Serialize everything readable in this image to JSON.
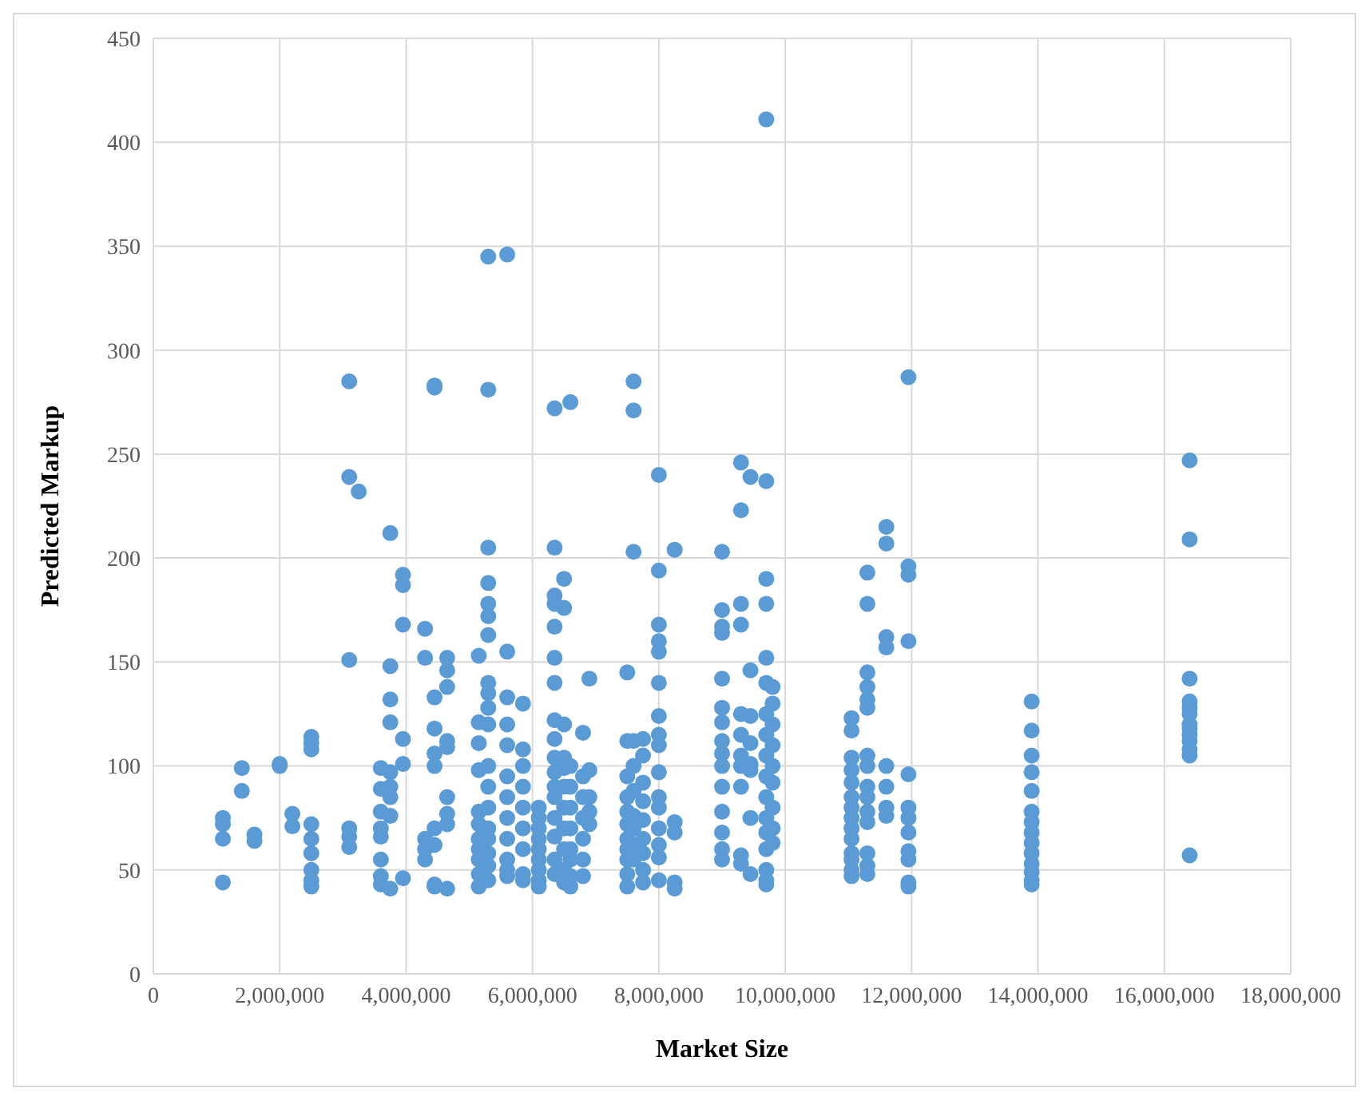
{
  "chart_data": {
    "type": "scatter",
    "xlabel": "Market Size",
    "ylabel": "Predicted Markup",
    "xlim": [
      0,
      18000000
    ],
    "ylim": [
      0,
      450
    ],
    "xticks": [
      {
        "value": 0,
        "label": "0"
      },
      {
        "value": 2000000,
        "label": "2,000,000"
      },
      {
        "value": 4000000,
        "label": "4,000,000"
      },
      {
        "value": 6000000,
        "label": "6,000,000"
      },
      {
        "value": 8000000,
        "label": "8,000,000"
      },
      {
        "value": 10000000,
        "label": "10,000,000"
      },
      {
        "value": 12000000,
        "label": "12,000,000"
      },
      {
        "value": 14000000,
        "label": "14,000,000"
      },
      {
        "value": 16000000,
        "label": "16,000,000"
      },
      {
        "value": 18000000,
        "label": "18,000,000"
      }
    ],
    "yticks": [
      0,
      50,
      100,
      150,
      200,
      250,
      300,
      350,
      400,
      450
    ],
    "grid": true,
    "marker": "circle",
    "series": [
      {
        "color": "#5b9bd5",
        "x": [
          1100000,
          1100000,
          1100000,
          1100000,
          1400000,
          1400000,
          1600000,
          1600000,
          2000000,
          2000000,
          2200000,
          2200000,
          2500000,
          2500000,
          2500000,
          2500000,
          2500000,
          2500000,
          2500000,
          2500000,
          2500000,
          3100000,
          3100000,
          3100000,
          3100000,
          3100000,
          3100000,
          3250000,
          3600000,
          3600000,
          3600000,
          3600000,
          3600000,
          3600000,
          3600000,
          3600000,
          3750000,
          3750000,
          3750000,
          3750000,
          3750000,
          3750000,
          3750000,
          3750000,
          3750000,
          3950000,
          3950000,
          3950000,
          3950000,
          3950000,
          3950000,
          4300000,
          4300000,
          4300000,
          4300000,
          4300000,
          4450000,
          4450000,
          4450000,
          4450000,
          4450000,
          4450000,
          4450000,
          4450000,
          4450000,
          4450000,
          4650000,
          4650000,
          4650000,
          4650000,
          4650000,
          4650000,
          4650000,
          4650000,
          4650000,
          5150000,
          5150000,
          5150000,
          5150000,
          5150000,
          5150000,
          5150000,
          5150000,
          5150000,
          5150000,
          5150000,
          5300000,
          5300000,
          5300000,
          5300000,
          5300000,
          5300000,
          5300000,
          5300000,
          5300000,
          5300000,
          5300000,
          5300000,
          5300000,
          5300000,
          5300000,
          5300000,
          5300000,
          5300000,
          5300000,
          5600000,
          5600000,
          5600000,
          5600000,
          5600000,
          5600000,
          5600000,
          5600000,
          5600000,
          5600000,
          5600000,
          5600000,
          5850000,
          5850000,
          5850000,
          5850000,
          5850000,
          5850000,
          5850000,
          5850000,
          5850000,
          6100000,
          6100000,
          6100000,
          6100000,
          6100000,
          6100000,
          6100000,
          6100000,
          6100000,
          6350000,
          6350000,
          6350000,
          6350000,
          6350000,
          6350000,
          6350000,
          6350000,
          6350000,
          6350000,
          6350000,
          6350000,
          6350000,
          6350000,
          6350000,
          6350000,
          6350000,
          6500000,
          6500000,
          6500000,
          6500000,
          6500000,
          6500000,
          6500000,
          6500000,
          6500000,
          6500000,
          6500000,
          6600000,
          6600000,
          6600000,
          6600000,
          6600000,
          6600000,
          6600000,
          6600000,
          6600000,
          6800000,
          6800000,
          6800000,
          6800000,
          6800000,
          6800000,
          6800000,
          6900000,
          6900000,
          6900000,
          6900000,
          6900000,
          7500000,
          7500000,
          7500000,
          7500000,
          7500000,
          7500000,
          7500000,
          7500000,
          7500000,
          7500000,
          7500000,
          7600000,
          7600000,
          7600000,
          7600000,
          7600000,
          7600000,
          7600000,
          7600000,
          7600000,
          7600000,
          7750000,
          7750000,
          7750000,
          7750000,
          7750000,
          7750000,
          7750000,
          7750000,
          7750000,
          8000000,
          8000000,
          8000000,
          8000000,
          8000000,
          8000000,
          8000000,
          8000000,
          8000000,
          8000000,
          8000000,
          8000000,
          8000000,
          8000000,
          8000000,
          8000000,
          8250000,
          8250000,
          8250000,
          8250000,
          8250000,
          9000000,
          9000000,
          9000000,
          9000000,
          9000000,
          9000000,
          9000000,
          9000000,
          9000000,
          9000000,
          9000000,
          9000000,
          9000000,
          9000000,
          9000000,
          9300000,
          9300000,
          9300000,
          9300000,
          9300000,
          9300000,
          9300000,
          9300000,
          9300000,
          9300000,
          9300000,
          9450000,
          9450000,
          9450000,
          9450000,
          9450000,
          9450000,
          9450000,
          9450000,
          9700000,
          9700000,
          9700000,
          9700000,
          9700000,
          9700000,
          9700000,
          9700000,
          9700000,
          9700000,
          9700000,
          9700000,
          9700000,
          9700000,
          9700000,
          9700000,
          9700000,
          9800000,
          9800000,
          9800000,
          9800000,
          9800000,
          9800000,
          9800000,
          9800000,
          9800000,
          11050000,
          11050000,
          11050000,
          11050000,
          11050000,
          11050000,
          11050000,
          11050000,
          11050000,
          11050000,
          11050000,
          11050000,
          11050000,
          11050000,
          11300000,
          11300000,
          11300000,
          11300000,
          11300000,
          11300000,
          11300000,
          11300000,
          11300000,
          11300000,
          11300000,
          11300000,
          11300000,
          11300000,
          11300000,
          11600000,
          11600000,
          11600000,
          11600000,
          11600000,
          11600000,
          11600000,
          11600000,
          11950000,
          11950000,
          11950000,
          11950000,
          11950000,
          11950000,
          11950000,
          11950000,
          11950000,
          11950000,
          11950000,
          11950000,
          13900000,
          13900000,
          13900000,
          13900000,
          13900000,
          13900000,
          13900000,
          13900000,
          13900000,
          13900000,
          13900000,
          13900000,
          13900000,
          13900000,
          16400000,
          16400000,
          16400000,
          16400000,
          16400000,
          16400000,
          16400000,
          16400000,
          16400000,
          16400000,
          16400000,
          16400000,
          16400000
        ],
        "values": [
          75,
          72,
          65,
          44,
          99,
          88,
          67,
          64,
          101,
          100,
          77,
          71,
          114,
          111,
          108,
          72,
          65,
          58,
          50,
          45,
          42,
          285,
          239,
          151,
          70,
          66,
          61,
          232,
          99,
          89,
          78,
          70,
          66,
          55,
          47,
          43,
          212,
          148,
          132,
          121,
          97,
          90,
          85,
          76,
          41,
          192,
          187,
          168,
          113,
          101,
          46,
          166,
          152,
          65,
          60,
          55,
          283,
          282,
          133,
          118,
          106,
          100,
          70,
          62,
          43,
          42,
          152,
          146,
          138,
          112,
          109,
          85,
          77,
          72,
          41,
          153,
          121,
          111,
          98,
          78,
          72,
          65,
          60,
          55,
          48,
          42,
          345,
          281,
          205,
          188,
          178,
          172,
          163,
          140,
          135,
          128,
          120,
          100,
          90,
          80,
          70,
          65,
          58,
          52,
          45,
          346,
          155,
          133,
          120,
          110,
          95,
          85,
          75,
          65,
          55,
          50,
          47,
          130,
          108,
          100,
          90,
          80,
          70,
          60,
          48,
          45,
          80,
          75,
          70,
          65,
          60,
          55,
          50,
          45,
          42,
          272,
          205,
          182,
          178,
          167,
          152,
          140,
          122,
          113,
          104,
          97,
          90,
          85,
          75,
          66,
          55,
          48,
          190,
          176,
          120,
          104,
          99,
          90,
          80,
          70,
          60,
          50,
          44,
          275,
          100,
          90,
          80,
          70,
          60,
          55,
          47,
          42,
          116,
          95,
          85,
          75,
          65,
          55,
          47,
          142,
          98,
          85,
          78,
          72,
          145,
          112,
          95,
          85,
          78,
          72,
          65,
          60,
          55,
          48,
          42,
          285,
          271,
          203,
          112,
          100,
          88,
          76,
          70,
          62,
          55,
          113,
          105,
          92,
          83,
          74,
          65,
          58,
          50,
          44,
          240,
          194,
          168,
          160,
          155,
          140,
          124,
          115,
          110,
          97,
          85,
          80,
          70,
          62,
          56,
          45,
          204,
          73,
          68,
          44,
          41,
          203,
          175,
          167,
          164,
          142,
          128,
          121,
          112,
          106,
          100,
          90,
          78,
          68,
          60,
          55,
          246,
          223,
          178,
          168,
          125,
          115,
          105,
          100,
          90,
          57,
          53,
          239,
          146,
          124,
          111,
          101,
          98,
          75,
          48,
          411,
          237,
          190,
          178,
          152,
          140,
          125,
          115,
          105,
          95,
          85,
          75,
          68,
          60,
          50,
          45,
          43,
          138,
          130,
          120,
          110,
          100,
          92,
          80,
          70,
          63,
          123,
          117,
          104,
          98,
          92,
          85,
          80,
          75,
          70,
          65,
          58,
          55,
          50,
          47,
          193,
          178,
          145,
          138,
          132,
          128,
          105,
          100,
          90,
          85,
          78,
          73,
          58,
          52,
          48,
          215,
          207,
          162,
          157,
          100,
          90,
          80,
          76,
          287,
          196,
          192,
          160,
          96,
          80,
          75,
          68,
          59,
          55,
          44,
          42,
          131,
          117,
          105,
          97,
          88,
          78,
          73,
          68,
          63,
          58,
          53,
          49,
          45,
          43,
          247,
          209,
          142,
          131,
          128,
          125,
          120,
          118,
          115,
          112,
          108,
          105,
          57
        ]
      }
    ]
  }
}
